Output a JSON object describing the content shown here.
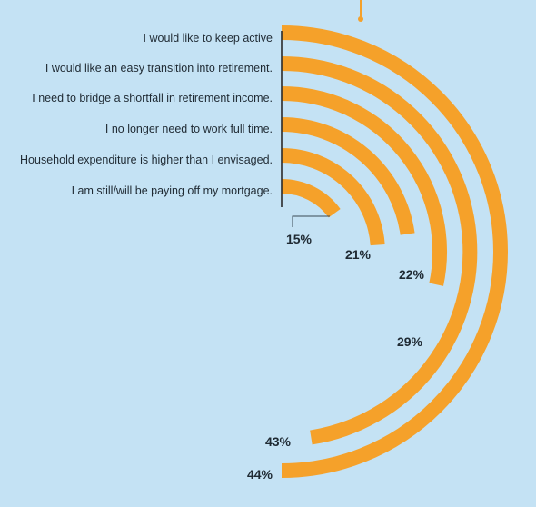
{
  "chart_data": {
    "type": "radial-bar",
    "title": "",
    "categories": [
      "I would like to keep active",
      "I would like an easy transition into retirement.",
      "I need to bridge a shortfall in retirement income.",
      "I no longer need to work full time.",
      "Household expenditure is higher than I envisaged.",
      "I am still/will be paying off my mortgage."
    ],
    "values": [
      44,
      43,
      29,
      22,
      21,
      15
    ],
    "value_labels": [
      "44%",
      "43%",
      "29%",
      "22%",
      "21%",
      "15%"
    ],
    "unit": "%",
    "colors": {
      "bar": "#f5a12a",
      "background": "#c4e2f4",
      "axis": "#2a2a2a",
      "text": "#1f2a33"
    }
  }
}
